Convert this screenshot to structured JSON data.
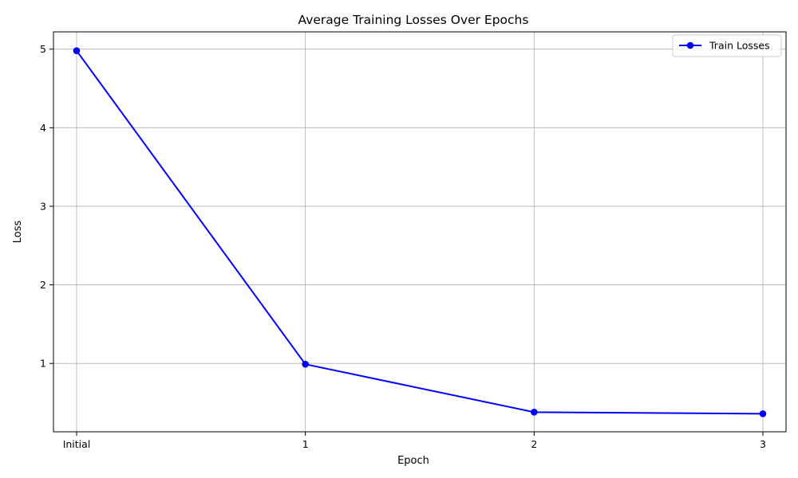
{
  "chart_data": {
    "type": "line",
    "title": "Average Training Losses Over Epochs",
    "xlabel": "Epoch",
    "ylabel": "Loss",
    "categories": [
      "Initial",
      "1",
      "2",
      "3"
    ],
    "series": [
      {
        "name": "Train Losses",
        "values": [
          4.98,
          0.99,
          0.38,
          0.36
        ],
        "color": "#0000ff",
        "marker": "circle"
      }
    ],
    "yticks": [
      "1",
      "2",
      "3",
      "4",
      "5"
    ],
    "ylim": [
      0.13,
      5.22
    ],
    "grid": true,
    "legend_position": "top-right"
  }
}
